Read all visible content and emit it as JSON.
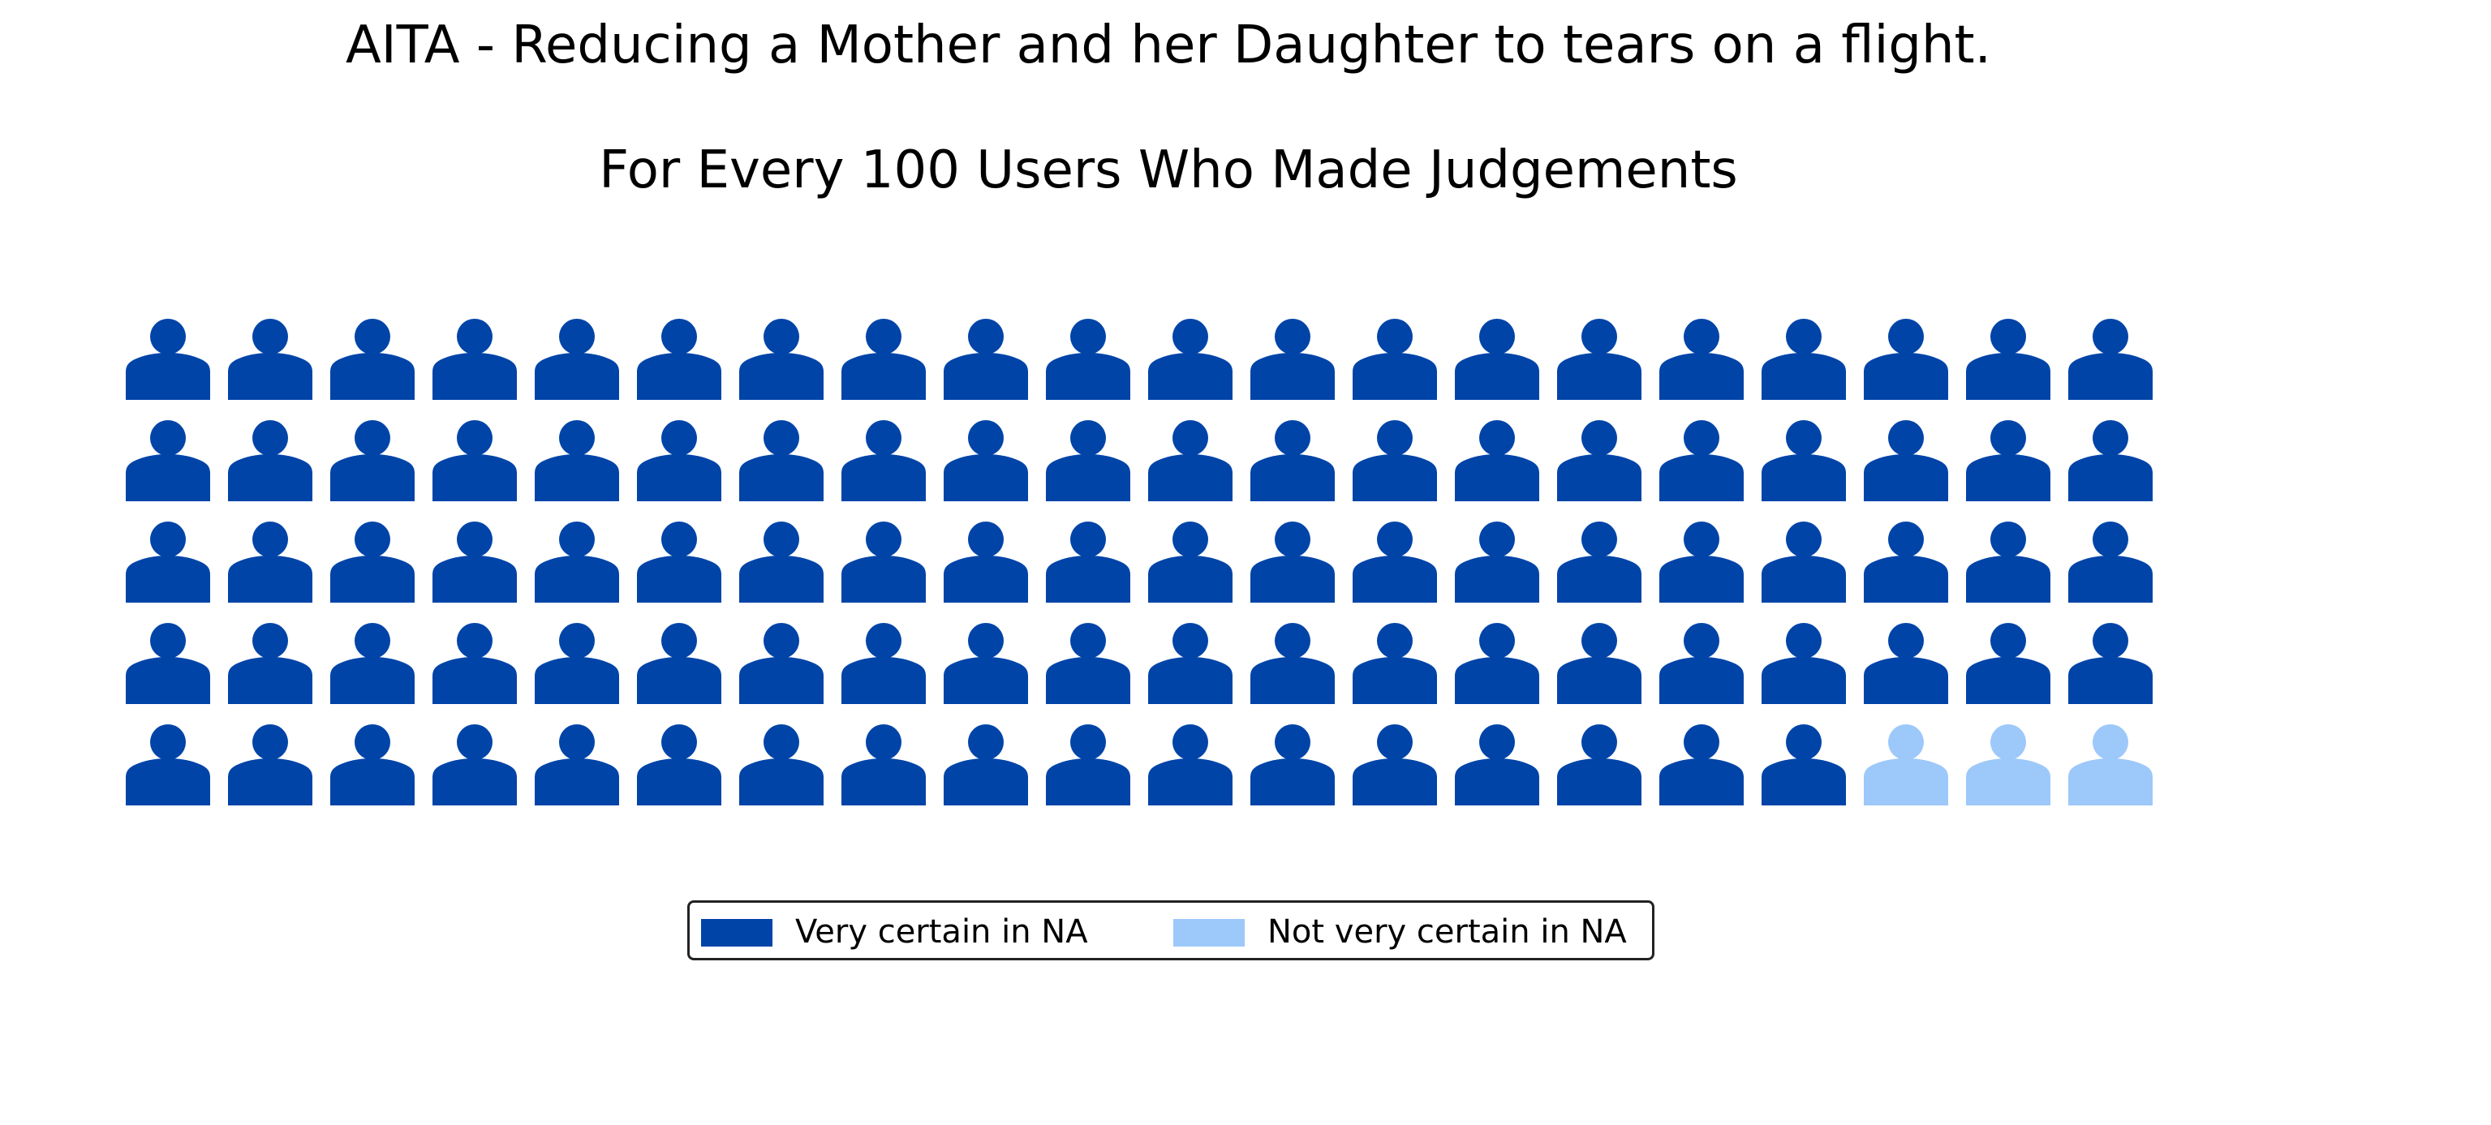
{
  "chart_data": {
    "type": "waffle",
    "title": "AITA - Reducing a Mother and her Daughter to tears on a flight.",
    "subtitle": "For Every 100 Users Who Made Judgements",
    "grid": {
      "rows": 5,
      "columns": 20
    },
    "icon": "person-icon",
    "categories": [
      {
        "label": "Very certain in NA",
        "count": 97,
        "color": "#0044A8"
      },
      {
        "label": "Not very certain in NA",
        "count": 3,
        "color": "#9DC8FA"
      }
    ],
    "legend_position": "bottom-center"
  }
}
